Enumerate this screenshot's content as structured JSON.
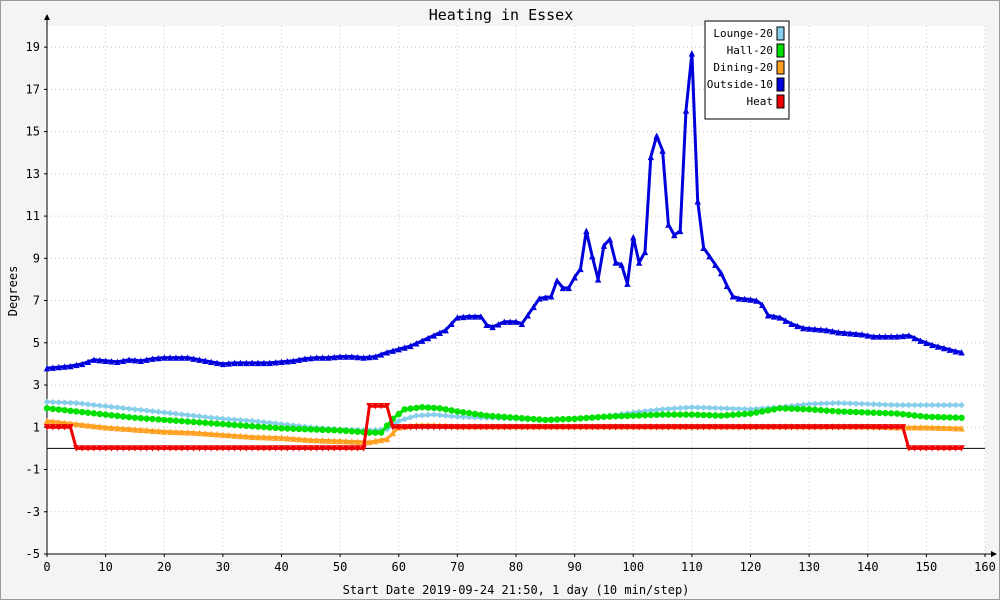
{
  "chart_data": {
    "type": "line",
    "title": "Heating in Essex",
    "xlabel": "Start Date 2019-09-24 21:50, 1 day (10 min/step)",
    "ylabel": "Degrees",
    "xlim": [
      0,
      160
    ],
    "ylim": [
      -5,
      20
    ],
    "x_ticks": [
      0,
      10,
      20,
      30,
      40,
      50,
      60,
      70,
      80,
      90,
      100,
      110,
      120,
      130,
      140,
      150,
      160
    ],
    "y_ticks": [
      -5,
      -3,
      -1,
      1,
      3,
      5,
      7,
      9,
      11,
      13,
      15,
      17,
      19
    ],
    "zero_line": 0,
    "grid": true,
    "legend_position": "top-right",
    "series": [
      {
        "name": "Lounge-20",
        "color": "#87ceeb",
        "marker": "diamond",
        "points": [
          [
            0,
            2.2
          ],
          [
            5,
            2.15
          ],
          [
            10,
            2.0
          ],
          [
            15,
            1.85
          ],
          [
            20,
            1.7
          ],
          [
            25,
            1.55
          ],
          [
            30,
            1.4
          ],
          [
            35,
            1.3
          ],
          [
            40,
            1.15
          ],
          [
            45,
            1.0
          ],
          [
            50,
            0.9
          ],
          [
            55,
            0.85
          ],
          [
            58,
            0.9
          ],
          [
            60,
            1.3
          ],
          [
            63,
            1.55
          ],
          [
            66,
            1.6
          ],
          [
            70,
            1.5
          ],
          [
            75,
            1.45
          ],
          [
            80,
            1.4
          ],
          [
            85,
            1.35
          ],
          [
            90,
            1.4
          ],
          [
            95,
            1.5
          ],
          [
            100,
            1.7
          ],
          [
            105,
            1.85
          ],
          [
            110,
            1.95
          ],
          [
            115,
            1.9
          ],
          [
            120,
            1.85
          ],
          [
            125,
            1.95
          ],
          [
            130,
            2.1
          ],
          [
            135,
            2.15
          ],
          [
            140,
            2.1
          ],
          [
            145,
            2.05
          ],
          [
            150,
            2.05
          ],
          [
            156,
            2.05
          ]
        ]
      },
      {
        "name": "Hall-20",
        "color": "#00e000",
        "marker": "circle",
        "points": [
          [
            0,
            1.9
          ],
          [
            5,
            1.75
          ],
          [
            10,
            1.6
          ],
          [
            15,
            1.45
          ],
          [
            20,
            1.35
          ],
          [
            25,
            1.25
          ],
          [
            30,
            1.15
          ],
          [
            35,
            1.05
          ],
          [
            40,
            0.95
          ],
          [
            45,
            0.9
          ],
          [
            50,
            0.85
          ],
          [
            55,
            0.75
          ],
          [
            57,
            0.75
          ],
          [
            59,
            1.4
          ],
          [
            61,
            1.85
          ],
          [
            64,
            1.95
          ],
          [
            67,
            1.9
          ],
          [
            70,
            1.75
          ],
          [
            75,
            1.55
          ],
          [
            80,
            1.45
          ],
          [
            85,
            1.35
          ],
          [
            90,
            1.4
          ],
          [
            95,
            1.5
          ],
          [
            100,
            1.55
          ],
          [
            105,
            1.6
          ],
          [
            110,
            1.6
          ],
          [
            115,
            1.55
          ],
          [
            120,
            1.65
          ],
          [
            125,
            1.9
          ],
          [
            130,
            1.85
          ],
          [
            135,
            1.75
          ],
          [
            140,
            1.7
          ],
          [
            145,
            1.65
          ],
          [
            150,
            1.5
          ],
          [
            156,
            1.45
          ]
        ]
      },
      {
        "name": "Dining-20",
        "color": "#ffa020",
        "marker": "triangle",
        "points": [
          [
            0,
            1.3
          ],
          [
            5,
            1.15
          ],
          [
            10,
            1.0
          ],
          [
            15,
            0.9
          ],
          [
            20,
            0.8
          ],
          [
            25,
            0.75
          ],
          [
            30,
            0.65
          ],
          [
            35,
            0.55
          ],
          [
            40,
            0.5
          ],
          [
            45,
            0.4
          ],
          [
            50,
            0.35
          ],
          [
            55,
            0.3
          ],
          [
            58,
            0.45
          ],
          [
            60,
            1.0
          ],
          [
            63,
            1.1
          ],
          [
            66,
            1.1
          ],
          [
            70,
            1.05
          ],
          [
            75,
            1.05
          ],
          [
            80,
            1.05
          ],
          [
            85,
            1.05
          ],
          [
            90,
            1.05
          ],
          [
            95,
            1.05
          ],
          [
            100,
            1.05
          ],
          [
            105,
            1.05
          ],
          [
            110,
            1.05
          ],
          [
            115,
            1.05
          ],
          [
            120,
            1.05
          ],
          [
            125,
            1.05
          ],
          [
            130,
            1.05
          ],
          [
            135,
            1.05
          ],
          [
            140,
            1.05
          ],
          [
            145,
            1.0
          ],
          [
            150,
            1.0
          ],
          [
            156,
            0.95
          ]
        ]
      },
      {
        "name": "Outside-10",
        "color": "#0000dd",
        "marker": "triangle",
        "points": [
          [
            0,
            3.8
          ],
          [
            2,
            3.85
          ],
          [
            4,
            3.9
          ],
          [
            6,
            4.0
          ],
          [
            8,
            4.2
          ],
          [
            10,
            4.15
          ],
          [
            12,
            4.1
          ],
          [
            14,
            4.2
          ],
          [
            16,
            4.15
          ],
          [
            18,
            4.25
          ],
          [
            20,
            4.3
          ],
          [
            22,
            4.3
          ],
          [
            24,
            4.3
          ],
          [
            26,
            4.2
          ],
          [
            28,
            4.1
          ],
          [
            30,
            4.0
          ],
          [
            32,
            4.05
          ],
          [
            34,
            4.05
          ],
          [
            36,
            4.05
          ],
          [
            38,
            4.05
          ],
          [
            40,
            4.1
          ],
          [
            42,
            4.15
          ],
          [
            44,
            4.25
          ],
          [
            46,
            4.3
          ],
          [
            48,
            4.3
          ],
          [
            50,
            4.35
          ],
          [
            52,
            4.35
          ],
          [
            54,
            4.3
          ],
          [
            56,
            4.35
          ],
          [
            58,
            4.55
          ],
          [
            60,
            4.7
          ],
          [
            62,
            4.85
          ],
          [
            64,
            5.1
          ],
          [
            66,
            5.35
          ],
          [
            68,
            5.6
          ],
          [
            70,
            6.2
          ],
          [
            72,
            6.25
          ],
          [
            74,
            6.25
          ],
          [
            75,
            5.85
          ],
          [
            76,
            5.75
          ],
          [
            78,
            6.0
          ],
          [
            80,
            6.0
          ],
          [
            81,
            5.9
          ],
          [
            82,
            6.3
          ],
          [
            83,
            6.7
          ],
          [
            84,
            7.1
          ],
          [
            86,
            7.2
          ],
          [
            87,
            7.95
          ],
          [
            88,
            7.6
          ],
          [
            89,
            7.6
          ],
          [
            90,
            8.1
          ],
          [
            91,
            8.5
          ],
          [
            92,
            10.3
          ],
          [
            93,
            9.1
          ],
          [
            94,
            8.0
          ],
          [
            95,
            9.6
          ],
          [
            96,
            9.9
          ],
          [
            97,
            8.8
          ],
          [
            98,
            8.7
          ],
          [
            99,
            7.8
          ],
          [
            100,
            10.0
          ],
          [
            101,
            8.8
          ],
          [
            102,
            9.3
          ],
          [
            103,
            13.8
          ],
          [
            104,
            14.8
          ],
          [
            105,
            14.1
          ],
          [
            106,
            10.6
          ],
          [
            107,
            10.1
          ],
          [
            108,
            10.3
          ],
          [
            109,
            16.0
          ],
          [
            110,
            18.7
          ],
          [
            111,
            11.7
          ],
          [
            112,
            9.5
          ],
          [
            113,
            9.1
          ],
          [
            114,
            8.7
          ],
          [
            115,
            8.3
          ],
          [
            116,
            7.7
          ],
          [
            117,
            7.2
          ],
          [
            118,
            7.1
          ],
          [
            120,
            7.05
          ],
          [
            121,
            7.0
          ],
          [
            122,
            6.8
          ],
          [
            123,
            6.3
          ],
          [
            125,
            6.2
          ],
          [
            127,
            5.9
          ],
          [
            129,
            5.7
          ],
          [
            131,
            5.65
          ],
          [
            133,
            5.6
          ],
          [
            135,
            5.5
          ],
          [
            137,
            5.45
          ],
          [
            139,
            5.4
          ],
          [
            141,
            5.3
          ],
          [
            143,
            5.3
          ],
          [
            145,
            5.3
          ],
          [
            147,
            5.35
          ],
          [
            149,
            5.1
          ],
          [
            151,
            4.9
          ],
          [
            153,
            4.75
          ],
          [
            155,
            4.6
          ],
          [
            156,
            4.55
          ]
        ]
      },
      {
        "name": "Heat",
        "color": "#ee0000",
        "marker": "triangle-down",
        "points": [
          [
            0,
            1.0
          ],
          [
            4,
            1.0
          ],
          [
            5,
            0.0
          ],
          [
            54,
            0.0
          ],
          [
            55,
            2.0
          ],
          [
            58,
            2.0
          ],
          [
            59,
            1.0
          ],
          [
            146,
            1.0
          ],
          [
            147,
            0.0
          ],
          [
            156,
            0.0
          ]
        ]
      }
    ]
  }
}
